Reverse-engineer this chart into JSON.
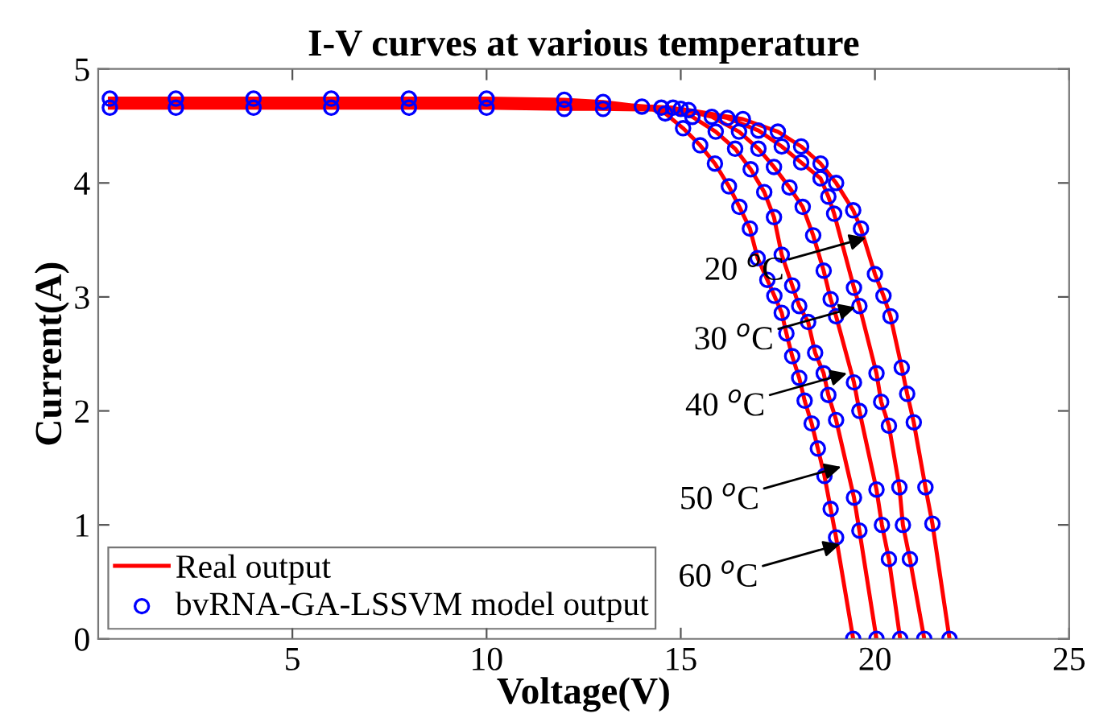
{
  "chart_data": {
    "type": "line",
    "title": "I-V curves at various temperature",
    "xlabel": "Voltage(V)",
    "ylabel": "Current(A)",
    "xlim": [
      0,
      25
    ],
    "xticks": [
      5,
      10,
      15,
      20,
      25
    ],
    "ylim": [
      0,
      5
    ],
    "yticks": [
      0,
      1,
      2,
      3,
      4,
      5
    ],
    "grid": false,
    "legend": "bottom left",
    "series": [
      {
        "name": "Real output",
        "color": "#ff0000",
        "marker": "none",
        "line_style": "solid",
        "x": [
          0.3,
          2,
          4,
          6,
          8,
          10,
          12,
          13,
          14.0,
          14.6,
          15.06,
          15.5,
          15.88,
          16.24,
          16.51,
          16.78,
          16.98,
          17.23,
          17.41,
          17.6,
          17.72,
          17.87,
          18.05,
          18.19,
          18.37,
          18.53,
          18.7,
          18.86,
          19.0,
          19.44,
          null,
          0.3,
          2,
          4,
          6,
          8,
          10,
          12,
          13,
          14.5,
          15.3,
          15.9,
          16.4,
          16.8,
          17.15,
          17.4,
          17.6,
          17.87,
          18.05,
          18.28,
          18.46,
          18.68,
          18.8,
          19.0,
          19.46,
          19.6,
          20.04,
          null,
          0.3,
          2,
          4,
          6,
          8,
          10,
          12,
          13,
          14.8,
          15.8,
          16.5,
          17.0,
          17.4,
          17.8,
          18.14,
          18.41,
          18.68,
          18.86,
          19.0,
          19.46,
          19.6,
          20.04,
          20.18,
          20.36,
          20.65,
          null,
          0.3,
          2,
          4,
          6,
          8,
          10,
          12,
          13,
          15.0,
          16.2,
          17.0,
          17.6,
          18.1,
          18.6,
          18.8,
          18.95,
          19.46,
          19.6,
          20.04,
          20.16,
          20.36,
          20.63,
          20.72,
          20.9,
          21.27,
          null,
          0.3,
          2,
          4,
          6,
          8,
          10,
          12,
          13,
          15.2,
          16.6,
          17.5,
          18.1,
          18.6,
          19.0,
          19.44,
          19.64,
          20.0,
          20.22,
          20.4,
          20.69,
          20.83,
          21.0,
          21.3,
          21.48,
          21.92
        ],
        "values": [
          4.74,
          4.74,
          4.74,
          4.74,
          4.74,
          4.74,
          4.73,
          4.71,
          4.67,
          4.61,
          4.48,
          4.33,
          4.17,
          3.97,
          3.79,
          3.6,
          3.34,
          3.15,
          3.01,
          2.86,
          2.68,
          2.48,
          2.29,
          2.09,
          1.89,
          1.67,
          1.43,
          1.14,
          0.89,
          0,
          null,
          4.72,
          4.72,
          4.72,
          4.72,
          4.72,
          4.72,
          4.71,
          4.7,
          4.66,
          4.58,
          4.45,
          4.3,
          4.12,
          3.92,
          3.7,
          3.37,
          3.1,
          2.92,
          2.78,
          2.51,
          2.33,
          2.14,
          1.92,
          1.24,
          0.95,
          0,
          null,
          4.7,
          4.7,
          4.7,
          4.7,
          4.7,
          4.7,
          4.69,
          4.69,
          4.66,
          4.58,
          4.45,
          4.3,
          4.14,
          3.96,
          3.79,
          3.54,
          3.23,
          2.98,
          2.83,
          2.25,
          2.0,
          1.31,
          1.0,
          0.7,
          0,
          null,
          4.68,
          4.68,
          4.68,
          4.68,
          4.68,
          4.68,
          4.67,
          4.67,
          4.65,
          4.57,
          4.46,
          4.32,
          4.18,
          4.04,
          3.88,
          3.73,
          3.08,
          2.92,
          2.33,
          2.08,
          1.87,
          1.33,
          1.0,
          0.7,
          0,
          null,
          4.66,
          4.66,
          4.66,
          4.66,
          4.66,
          4.66,
          4.65,
          4.65,
          4.64,
          4.56,
          4.45,
          4.32,
          4.17,
          4.0,
          3.76,
          3.6,
          3.2,
          3.01,
          2.83,
          2.38,
          2.15,
          1.9,
          1.33,
          1.01,
          0
        ]
      },
      {
        "name": "bvRNA-GA-LSSVM model output",
        "type": "scatter",
        "color": "#0000ff",
        "marker": "circle",
        "x": [
          0.3,
          2,
          4,
          6,
          8,
          10,
          12,
          13,
          14.0,
          14.6,
          15.06,
          15.5,
          15.88,
          16.24,
          16.51,
          16.78,
          16.98,
          17.23,
          17.41,
          17.6,
          17.72,
          17.87,
          18.05,
          18.19,
          18.37,
          18.53,
          18.7,
          18.86,
          19.0,
          19.44,
          14.5,
          15.3,
          15.9,
          16.4,
          16.8,
          17.15,
          17.4,
          17.6,
          17.87,
          18.05,
          18.28,
          18.46,
          18.68,
          18.8,
          19.0,
          19.46,
          19.6,
          20.04,
          14.8,
          15.8,
          16.5,
          17.0,
          17.4,
          17.8,
          18.14,
          18.41,
          18.68,
          18.86,
          19.0,
          19.46,
          19.6,
          20.04,
          20.18,
          20.36,
          20.65,
          15.0,
          16.2,
          17.0,
          17.6,
          18.1,
          18.6,
          18.8,
          18.95,
          19.46,
          19.6,
          20.04,
          20.16,
          20.36,
          20.63,
          20.72,
          20.9,
          21.27,
          0.3,
          2,
          4,
          6,
          8,
          10,
          12,
          13,
          15.2,
          16.6,
          17.5,
          18.1,
          18.6,
          19.0,
          19.44,
          19.64,
          20.0,
          20.22,
          20.4,
          20.69,
          20.83,
          21.0,
          21.3,
          21.48,
          21.92
        ],
        "values": [
          4.74,
          4.74,
          4.74,
          4.74,
          4.74,
          4.74,
          4.73,
          4.71,
          4.67,
          4.61,
          4.48,
          4.33,
          4.17,
          3.97,
          3.79,
          3.6,
          3.34,
          3.15,
          3.01,
          2.86,
          2.68,
          2.48,
          2.29,
          2.09,
          1.89,
          1.67,
          1.43,
          1.14,
          0.89,
          0,
          4.66,
          4.58,
          4.45,
          4.3,
          4.12,
          3.92,
          3.7,
          3.37,
          3.1,
          2.92,
          2.78,
          2.51,
          2.33,
          2.14,
          1.92,
          1.24,
          0.95,
          0,
          4.66,
          4.58,
          4.45,
          4.3,
          4.14,
          3.96,
          3.79,
          3.54,
          3.23,
          2.98,
          2.83,
          2.25,
          2.0,
          1.31,
          1.0,
          0.7,
          0,
          4.65,
          4.57,
          4.46,
          4.32,
          4.18,
          4.04,
          3.88,
          3.73,
          3.08,
          2.92,
          2.33,
          2.08,
          1.87,
          1.33,
          1.0,
          0.7,
          0,
          4.66,
          4.66,
          4.66,
          4.66,
          4.66,
          4.66,
          4.65,
          4.65,
          4.64,
          4.56,
          4.45,
          4.32,
          4.17,
          4.0,
          3.76,
          3.6,
          3.2,
          3.01,
          2.83,
          2.38,
          2.15,
          1.9,
          1.33,
          1.01,
          0
        ]
      }
    ],
    "annotations": [
      {
        "text": "20 $^{o}$C",
        "x": 19.77,
        "y": 3.52
      },
      {
        "text": "30 $^{o}$C",
        "x": 19.5,
        "y": 2.91
      },
      {
        "text": "40 $^{o}$C",
        "x": 19.28,
        "y": 2.33
      },
      {
        "text": "50 $^{o}$C",
        "x": 19.13,
        "y": 1.51
      },
      {
        "text": "60 $^{o}$C",
        "x": 19.1,
        "y": 0.83
      }
    ]
  }
}
